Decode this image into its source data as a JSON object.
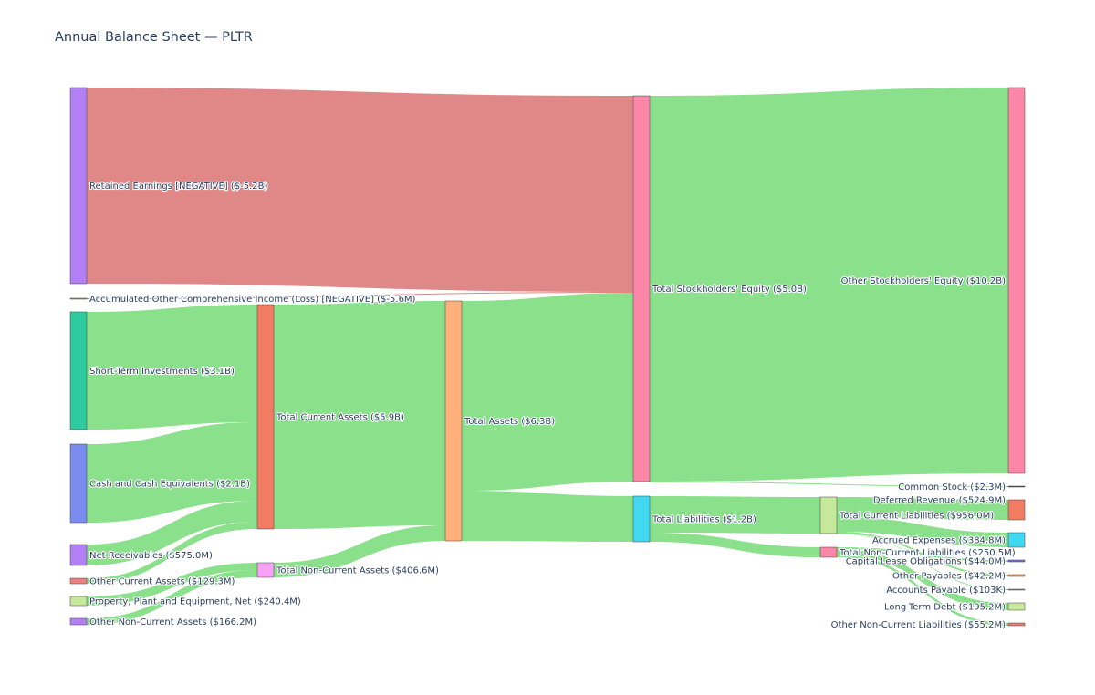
{
  "chart_data": {
    "type": "sankey",
    "title": "Annual Balance Sheet — PLTR",
    "nodes": [
      {
        "id": "re",
        "label": "Retained Earnings [NEGATIVE] ($-5.2B)",
        "color": "#b27ff5"
      },
      {
        "id": "aoci",
        "label": "Accumulated Other Comprehensive Income (Loss) [NEGATIVE] ($-5.6M)",
        "color": "#de8282"
      },
      {
        "id": "sti",
        "label": "Short-Term Investments ($3.1B)",
        "color": "#2ecba0"
      },
      {
        "id": "cash",
        "label": "Cash and Cash Equivalents ($2.1B)",
        "color": "#7a8cf0"
      },
      {
        "id": "nr",
        "label": "Net Receivables ($575.0M)",
        "color": "#b27ff5"
      },
      {
        "id": "oca",
        "label": "Other Current Assets ($129.3M)",
        "color": "#f08080"
      },
      {
        "id": "ppe",
        "label": "Property, Plant and Equipment, Net ($240.4M)",
        "color": "#c5e89a"
      },
      {
        "id": "onca",
        "label": "Other Non-Current Assets ($166.2M)",
        "color": "#b27ff5"
      },
      {
        "id": "tca",
        "label": "Total Current Assets ($5.9B)",
        "color": "#f27c62"
      },
      {
        "id": "tnca",
        "label": "Total Non-Current Assets ($406.6M)",
        "color": "#f8a2f5"
      },
      {
        "id": "ta",
        "label": "Total Assets ($6.3B)",
        "color": "#ffb07a"
      },
      {
        "id": "tse",
        "label": "Total Stockholders' Equity ($5.0B)",
        "color": "#fb86a8"
      },
      {
        "id": "tl",
        "label": "Total Liabilities ($1.2B)",
        "color": "#41d8f2"
      },
      {
        "id": "tcl",
        "label": "Total Current Liabilities ($956.0M)",
        "color": "#c5e89a"
      },
      {
        "id": "tncl",
        "label": "Total Non-Current Liabilities ($250.5M)",
        "color": "#fb86a8"
      },
      {
        "id": "ose",
        "label": "Other Stockholders' Equity ($10.2B)",
        "color": "#fb86a8"
      },
      {
        "id": "cs",
        "label": "Common Stock ($2.3M)",
        "color": "#555555"
      },
      {
        "id": "dr",
        "label": "Deferred Revenue ($524.9M)",
        "color": "#f27c62"
      },
      {
        "id": "ae",
        "label": "Accrued Expenses ($384.8M)",
        "color": "#41d8f2"
      },
      {
        "id": "clo",
        "label": "Capital Lease Obligations ($44.0M)",
        "color": "#7a6fd8"
      },
      {
        "id": "op",
        "label": "Other Payables ($42.2M)",
        "color": "#f0a050"
      },
      {
        "id": "ap",
        "label": "Accounts Payable ($103K)",
        "color": "#888888"
      },
      {
        "id": "ltd",
        "label": "Long-Term Debt ($195.2M)",
        "color": "#c5e89a"
      },
      {
        "id": "oncl",
        "label": "Other Non-Current Liabilities ($55.2M)",
        "color": "#f27c62"
      }
    ],
    "links": [
      {
        "source": "re",
        "target": "tse",
        "value": 5.2,
        "negative": true
      },
      {
        "source": "aoci",
        "target": "tse",
        "value": 0.0056,
        "negative": true
      },
      {
        "source": "sti",
        "target": "tca",
        "value": 3.1
      },
      {
        "source": "cash",
        "target": "tca",
        "value": 2.1
      },
      {
        "source": "nr",
        "target": "tca",
        "value": 0.575
      },
      {
        "source": "oca",
        "target": "tca",
        "value": 0.1293
      },
      {
        "source": "ppe",
        "target": "tnca",
        "value": 0.2404
      },
      {
        "source": "onca",
        "target": "tnca",
        "value": 0.1662
      },
      {
        "source": "tca",
        "target": "ta",
        "value": 5.9
      },
      {
        "source": "tnca",
        "target": "ta",
        "value": 0.4066
      },
      {
        "source": "ta",
        "target": "tse",
        "value": 5.0
      },
      {
        "source": "ta",
        "target": "tl",
        "value": 1.2
      },
      {
        "source": "tse",
        "target": "ose",
        "value": 10.2
      },
      {
        "source": "tse",
        "target": "cs",
        "value": 0.0023
      },
      {
        "source": "tl",
        "target": "tcl",
        "value": 0.956
      },
      {
        "source": "tl",
        "target": "tncl",
        "value": 0.2505
      },
      {
        "source": "tcl",
        "target": "dr",
        "value": 0.5249
      },
      {
        "source": "tcl",
        "target": "ae",
        "value": 0.3848
      },
      {
        "source": "tcl",
        "target": "op",
        "value": 0.0422
      },
      {
        "source": "tcl",
        "target": "ap",
        "value": 0.000103
      },
      {
        "source": "tncl",
        "target": "clo",
        "value": 0.044
      },
      {
        "source": "tncl",
        "target": "ltd",
        "value": 0.1952
      },
      {
        "source": "tncl",
        "target": "oncl",
        "value": 0.0552
      }
    ]
  }
}
